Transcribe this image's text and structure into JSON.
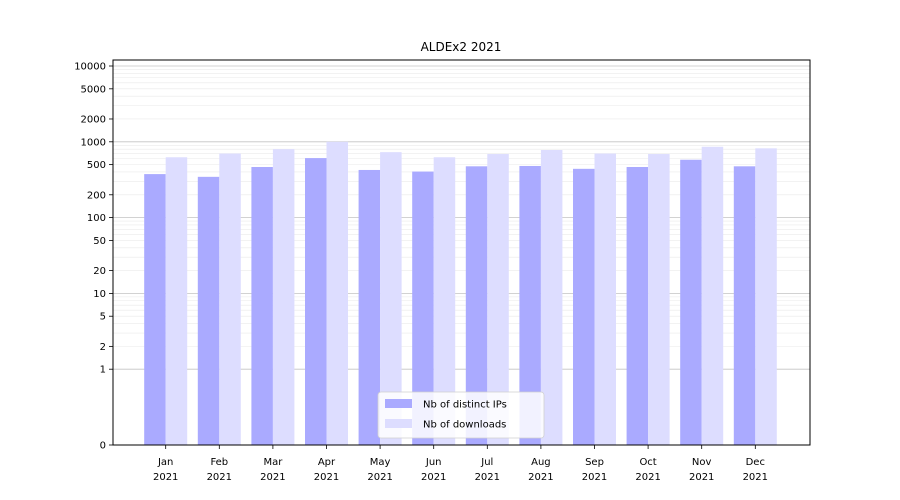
{
  "chart_data": {
    "type": "bar",
    "title": "ALDEx2 2021",
    "y_scale": "symlog",
    "y_ticks": [
      0,
      1,
      2,
      5,
      10,
      20,
      50,
      100,
      200,
      500,
      1000,
      2000,
      5000,
      10000
    ],
    "y_tick_labels": [
      "0",
      "1",
      "2",
      "5",
      "10",
      "20",
      "50",
      "100",
      "200",
      "500",
      "1000",
      "2000",
      "5000",
      "10000"
    ],
    "ylim": [
      0,
      12000
    ],
    "categories": [
      "Jan\n2021",
      "Feb\n2021",
      "Mar\n2021",
      "Apr\n2021",
      "May\n2021",
      "Jun\n2021",
      "Jul\n2021",
      "Aug\n2021",
      "Sep\n2021",
      "Oct\n2021",
      "Nov\n2021",
      "Dec\n2021"
    ],
    "series": [
      {
        "name": "Nb of distinct IPs",
        "color": "#aaaaff",
        "values": [
          375,
          345,
          465,
          610,
          425,
          405,
          475,
          480,
          440,
          465,
          580,
          475
        ]
      },
      {
        "name": "Nb of downloads",
        "color": "#ddddff",
        "values": [
          625,
          700,
          800,
          1000,
          730,
          625,
          690,
          780,
          700,
          690,
          860,
          820
        ]
      }
    ],
    "legend_position": "bottom-center",
    "grid": true
  }
}
